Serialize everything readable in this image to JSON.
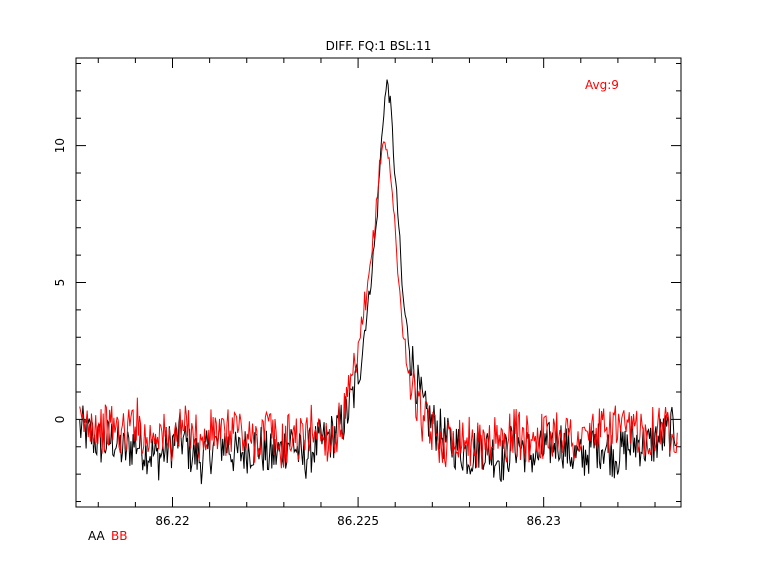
{
  "chart_data": {
    "type": "line",
    "title": "DIFF. FQ:1 BSL:11",
    "annotation": "Avg:9",
    "xlabel": "",
    "ylabel": "",
    "xlim": [
      86.2174,
      86.2337
    ],
    "ylim": [
      -3.2,
      13.2
    ],
    "x_ticks": [
      86.22,
      86.225,
      86.23
    ],
    "x_tick_labels": [
      "86.22",
      "86.225",
      "86.23"
    ],
    "y_ticks": [
      0,
      5,
      10
    ],
    "y_tick_labels": [
      "0",
      "5",
      "10"
    ],
    "grid": false,
    "legend_position": "bottom-left",
    "colors": {
      "AA": "#000000",
      "BB": "#ff0000",
      "annotation": "#ff0000",
      "axes": "#000000"
    },
    "series": [
      {
        "name": "AA",
        "color": "#000000",
        "x": [
          86.2175,
          86.2178,
          86.2181,
          86.2184,
          86.2187,
          86.219,
          86.2193,
          86.2196,
          86.2199,
          86.2202,
          86.2205,
          86.2208,
          86.2211,
          86.2214,
          86.2217,
          86.222,
          86.2223,
          86.2226,
          86.2229,
          86.2232,
          86.2235,
          86.2238,
          86.2241,
          86.2244,
          86.2247,
          86.2249,
          86.2251,
          86.2253,
          86.2255,
          86.2256,
          86.2257,
          86.2258,
          86.2259,
          86.226,
          86.2261,
          86.2262,
          86.2264,
          86.2266,
          86.2268,
          86.2271,
          86.2274,
          86.2277,
          86.228,
          86.2283,
          86.2286,
          86.2289,
          86.2292,
          86.2295,
          86.2298,
          86.2301,
          86.2304,
          86.2307,
          86.231,
          86.2313,
          86.2316,
          86.2319,
          86.2322,
          86.2325,
          86.2328,
          86.2331,
          86.2334,
          86.2336
        ],
        "y": [
          -0.3,
          -0.6,
          -0.9,
          -0.7,
          -1.2,
          -0.8,
          -1.1,
          -1.4,
          -1.0,
          -0.6,
          -1.2,
          -1.5,
          -1.0,
          -0.8,
          -1.3,
          -1.1,
          -0.9,
          -1.4,
          -1.2,
          -0.7,
          -1.5,
          -1.0,
          -0.8,
          -0.5,
          0.2,
          1.0,
          2.5,
          4.5,
          7.2,
          9.5,
          11.5,
          12.4,
          11.0,
          8.8,
          7.0,
          4.5,
          2.5,
          1.2,
          0.2,
          -0.3,
          -0.8,
          -1.0,
          -1.3,
          -0.9,
          -1.2,
          -1.5,
          -0.8,
          -1.1,
          -1.4,
          -1.0,
          -0.7,
          -1.2,
          -1.5,
          -1.0,
          -0.9,
          -1.3,
          -1.1,
          -0.8,
          -1.0,
          -0.7,
          -0.5,
          -0.3
        ]
      },
      {
        "name": "BB",
        "color": "#ff0000",
        "x": [
          86.2175,
          86.2178,
          86.2181,
          86.2184,
          86.2187,
          86.219,
          86.2193,
          86.2196,
          86.2199,
          86.2202,
          86.2205,
          86.2208,
          86.2211,
          86.2214,
          86.2217,
          86.222,
          86.2223,
          86.2226,
          86.2229,
          86.2232,
          86.2235,
          86.2238,
          86.2241,
          86.2244,
          86.2247,
          86.2249,
          86.2251,
          86.2253,
          86.2255,
          86.2256,
          86.2257,
          86.2258,
          86.2259,
          86.226,
          86.2261,
          86.2262,
          86.2264,
          86.2266,
          86.2268,
          86.2271,
          86.2274,
          86.2277,
          86.228,
          86.2283,
          86.2286,
          86.2289,
          86.2292,
          86.2295,
          86.2298,
          86.2301,
          86.2304,
          86.2307,
          86.231,
          86.2313,
          86.2316,
          86.2319,
          86.2322,
          86.2325,
          86.2328,
          86.2331,
          86.2334,
          86.2336
        ],
        "y": [
          -0.3,
          0.0,
          -0.4,
          -0.2,
          -0.6,
          0.1,
          -0.8,
          -0.3,
          -0.9,
          -0.5,
          -0.2,
          -1.0,
          -0.4,
          -0.7,
          -0.1,
          -0.9,
          -0.6,
          -0.3,
          -1.1,
          -0.5,
          -0.8,
          -0.2,
          -0.7,
          -0.6,
          0.5,
          1.6,
          3.0,
          5.2,
          7.8,
          9.6,
          10.2,
          9.8,
          8.5,
          7.0,
          5.0,
          3.2,
          1.5,
          0.5,
          -0.2,
          -0.6,
          -0.9,
          -0.5,
          -0.8,
          -1.0,
          -0.6,
          -0.9,
          -0.4,
          -0.8,
          -0.5,
          -0.7,
          -0.3,
          -0.6,
          -0.9,
          -0.4,
          -0.5,
          -0.2,
          -0.6,
          -0.3,
          -0.5,
          -0.2,
          -0.4,
          -0.3
        ]
      }
    ]
  }
}
